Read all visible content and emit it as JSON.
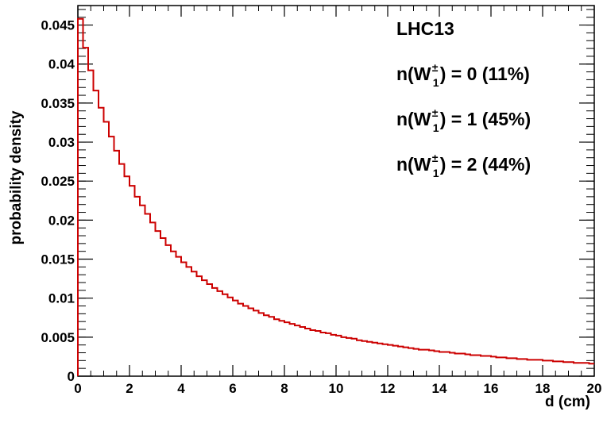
{
  "chart_data": {
    "type": "line",
    "style": "step-histogram",
    "xlabel": "d (cm)",
    "ylabel": "probability density",
    "xlim": [
      0,
      20
    ],
    "ylim": [
      0,
      0.0475
    ],
    "x_ticks": [
      0,
      2,
      4,
      6,
      8,
      10,
      12,
      14,
      16,
      18,
      20
    ],
    "x_tick_labels": [
      "0",
      "2",
      "4",
      "6",
      "8",
      "10",
      "12",
      "14",
      "16",
      "18",
      "20"
    ],
    "y_ticks": [
      0,
      0.005,
      0.01,
      0.015,
      0.02,
      0.025,
      0.03,
      0.035,
      0.04,
      0.045
    ],
    "y_tick_labels": [
      "0",
      "0.005",
      "0.01",
      "0.015",
      "0.02",
      "0.025",
      "0.03",
      "0.035",
      "0.04",
      "0.045"
    ],
    "grid": false,
    "line_color": "#cc0000",
    "bins": {
      "start": 0,
      "width": 0.2,
      "count": 100
    },
    "values": [
      0.0458,
      0.0421,
      0.0392,
      0.0366,
      0.0344,
      0.0326,
      0.0307,
      0.0289,
      0.0272,
      0.0256,
      0.0244,
      0.023,
      0.0219,
      0.0208,
      0.0197,
      0.0186,
      0.0177,
      0.0168,
      0.016,
      0.0153,
      0.0146,
      0.014,
      0.0134,
      0.0128,
      0.0123,
      0.0118,
      0.0113,
      0.0109,
      0.0105,
      0.0101,
      0.0097,
      0.0093,
      0.009,
      0.0087,
      0.0084,
      0.0081,
      0.0078,
      0.0076,
      0.0073,
      0.0071,
      0.0069,
      0.0067,
      0.0065,
      0.0063,
      0.0061,
      0.0059,
      0.0058,
      0.0056,
      0.0055,
      0.0053,
      0.0052,
      0.005,
      0.0049,
      0.0048,
      0.0046,
      0.0045,
      0.0044,
      0.0043,
      0.0042,
      0.0041,
      0.004,
      0.0039,
      0.0038,
      0.0037,
      0.0036,
      0.0035,
      0.0034,
      0.0034,
      0.0033,
      0.0032,
      0.0031,
      0.0031,
      0.003,
      0.0029,
      0.0029,
      0.0028,
      0.0027,
      0.0027,
      0.0026,
      0.0026,
      0.0025,
      0.0024,
      0.0024,
      0.0023,
      0.0023,
      0.0022,
      0.0022,
      0.0021,
      0.0021,
      0.0021,
      0.002,
      0.002,
      0.0019,
      0.0019,
      0.0018,
      0.0018,
      0.0017,
      0.0017,
      0.0017,
      0.0016
    ],
    "annotations": [
      {
        "base": "LHC13",
        "sup": "",
        "sub": "",
        "tail": ""
      },
      {
        "base": "n(W",
        "sup": "±",
        "sub": "1",
        "tail": ") = 0 (11%)"
      },
      {
        "base": "n(W",
        "sup": "±",
        "sub": "1",
        "tail": ") = 1 (45%)"
      },
      {
        "base": "n(W",
        "sup": "±",
        "sub": "1",
        "tail": ") = 2 (44%)"
      }
    ]
  }
}
